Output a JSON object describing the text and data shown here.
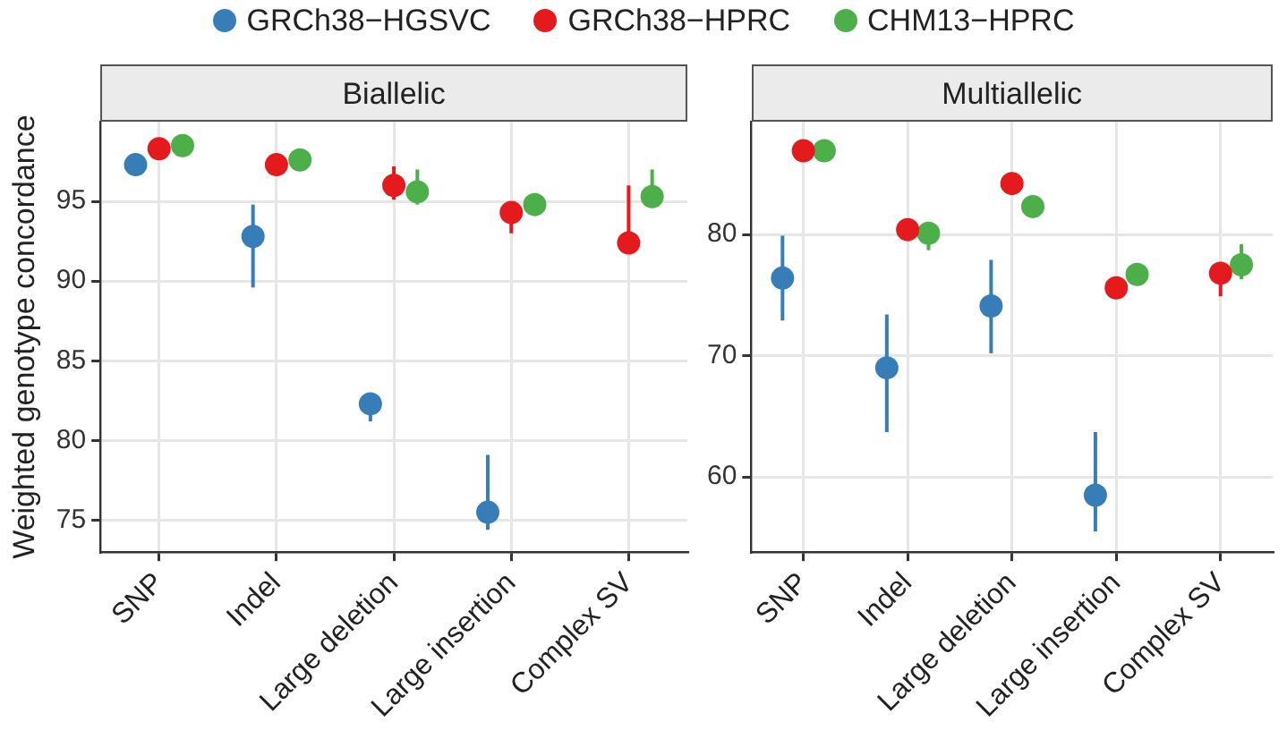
{
  "chart_data": [
    {
      "type": "scatter",
      "title": "Biallelic",
      "ylabel": "Weighted genotype concordance",
      "categories": [
        "SNP",
        "Indel",
        "Large deletion",
        "Large insertion",
        "Complex SV"
      ],
      "ylim": [
        73,
        100
      ],
      "yticks": [
        75,
        80,
        85,
        90,
        95
      ],
      "grid": true,
      "legend": "top",
      "marker": "circle",
      "series": [
        {
          "name": "GRCh38−HGSVC",
          "color": "#377eb8",
          "values": [
            97.3,
            92.8,
            82.3,
            75.5,
            null
          ],
          "errors": [
            null,
            [
              89.6,
              94.8
            ],
            [
              81.2,
              82.3
            ],
            [
              74.4,
              79.1
            ],
            null
          ]
        },
        {
          "name": "GRCh38−HPRC",
          "color": "#e41a1c",
          "values": [
            98.3,
            97.3,
            96.0,
            94.3,
            92.4
          ],
          "errors": [
            null,
            null,
            [
              95.1,
              97.2
            ],
            [
              93.0,
              94.3
            ],
            [
              92.4,
              96.0
            ]
          ]
        },
        {
          "name": "CHM13−HPRC",
          "color": "#4daf4a",
          "values": [
            98.5,
            97.6,
            95.6,
            94.8,
            95.3
          ],
          "errors": [
            null,
            null,
            [
              94.8,
              97.0
            ],
            null,
            [
              95.3,
              97.0
            ]
          ]
        }
      ]
    },
    {
      "type": "scatter",
      "title": "Multiallelic",
      "categories": [
        "SNP",
        "Indel",
        "Large deletion",
        "Large insertion",
        "Complex SV"
      ],
      "ylim": [
        53.8,
        89.3
      ],
      "yticks": [
        60,
        70,
        80
      ],
      "grid": true,
      "legend": "top",
      "marker": "circle",
      "series": [
        {
          "name": "GRCh38−HGSVC",
          "color": "#377eb8",
          "values": [
            76.4,
            69.0,
            74.1,
            58.5,
            null
          ],
          "errors": [
            [
              72.9,
              79.9
            ],
            [
              63.7,
              73.4
            ],
            [
              70.2,
              77.9
            ],
            [
              55.5,
              63.7
            ],
            null
          ]
        },
        {
          "name": "GRCh38−HPRC",
          "color": "#e41a1c",
          "values": [
            86.9,
            80.4,
            84.2,
            75.6,
            76.8
          ],
          "errors": [
            null,
            null,
            null,
            null,
            [
              74.9,
              76.8
            ]
          ]
        },
        {
          "name": "CHM13−HPRC",
          "color": "#4daf4a",
          "values": [
            86.9,
            80.1,
            82.3,
            76.7,
            77.5
          ],
          "errors": [
            null,
            [
              78.7,
              80.1
            ],
            null,
            null,
            [
              76.3,
              79.2
            ]
          ]
        }
      ]
    }
  ]
}
